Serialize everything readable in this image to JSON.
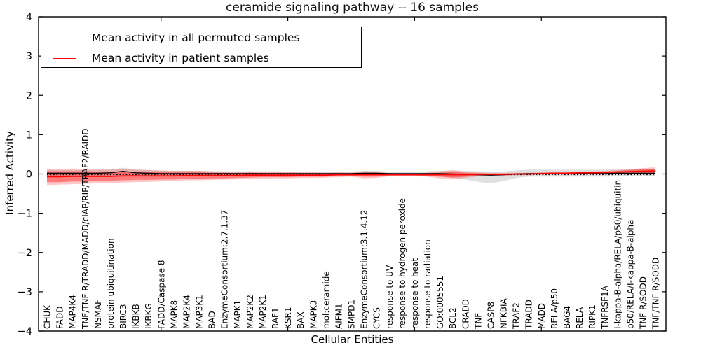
{
  "title": "ceramide signaling pathway -- 16 samples",
  "axes": {
    "ylabel": "Inferred Activity",
    "xlabel": "Cellular Entities",
    "ytick_labels": [
      "4",
      "3",
      "2",
      "1",
      "0",
      "−1",
      "−2",
      "−3",
      "−4"
    ],
    "ytick_values": [
      4,
      3,
      2,
      1,
      0,
      -1,
      -2,
      -3,
      -4
    ],
    "x_major_tick_indices": [
      9,
      19,
      29,
      39
    ]
  },
  "legend": {
    "items": [
      {
        "label": "Mean activity in all permuted samples",
        "color": "#000000"
      },
      {
        "label": "Mean activity in patient samples",
        "color": "#ff0000"
      }
    ]
  },
  "chart_data": {
    "type": "line",
    "title": "ceramide signaling pathway -- 16 samples",
    "xlabel": "Cellular Entities",
    "ylabel": "Inferred Activity",
    "ylim": [
      -4,
      4
    ],
    "legend_position": "upper left",
    "grid": false,
    "categories": [
      "CHUK",
      "FADD",
      "MAP4K4",
      "TNF/TNF R/TRADD/MADD/cIAP/RIP/TRAF2/RAIDD",
      "NSMAF",
      "protein ubiquitination",
      "BIRC3",
      "IKBKB",
      "IKBKG",
      "FADD/Caspase 8",
      "MAPK8",
      "MAP2K4",
      "MAP3K1",
      "BAD",
      "EnzymeConsortium:2.7.1.37",
      "MAPK1",
      "MAP2K2",
      "MAP2K1",
      "RAF1",
      "KSR1",
      "BAX",
      "MAPK3",
      "mol:ceramide",
      "AIFM1",
      "SMPD1",
      "EnzymeConsortium:3.1.4.12",
      "CYCS",
      "response to UV",
      "response to hydrogen peroxide",
      "response to heat",
      "response to radiation",
      "GO:0005551",
      "BCL2",
      "CRADD",
      "TNF",
      "CASP8",
      "NFKBIA",
      "TRAF2",
      "TRADD",
      "MADD",
      "RELA/p50",
      "BAG4",
      "RELA",
      "RIPK1",
      "TNFRSF1A",
      "I-kappa-B-alpha/RELA/p50/ubiquitin",
      "p50/RELA/I-kappa-B-alpha",
      "TNF R/SODD",
      "TNF/TNF R/SODD"
    ],
    "series": [
      {
        "name": "Mean activity in all permuted samples",
        "color": "#000000",
        "width": 1.3,
        "values": [
          0.02,
          0.02,
          0.02,
          0.02,
          0.02,
          0.03,
          0.07,
          0.03,
          0.02,
          0.01,
          0.01,
          0.01,
          0.01,
          0.01,
          0.01,
          0.01,
          0.01,
          0.01,
          0.01,
          0.01,
          0.01,
          0.01,
          0.01,
          0.01,
          0.01,
          0.02,
          0.02,
          0.01,
          0.01,
          0.01,
          0.01,
          0.01,
          0.0,
          -0.01,
          -0.02,
          -0.03,
          -0.02,
          0.0,
          0.01,
          0.01,
          0.01,
          0.01,
          0.01,
          0.01,
          0.01,
          0.02,
          0.02,
          0.02,
          0.02
        ]
      },
      {
        "name": "Mean activity in patient samples",
        "color": "#ff0000",
        "width": 1.6,
        "values": [
          -0.07,
          -0.07,
          -0.06,
          -0.06,
          -0.06,
          -0.06,
          -0.05,
          -0.05,
          -0.05,
          -0.05,
          -0.05,
          -0.04,
          -0.04,
          -0.04,
          -0.04,
          -0.04,
          -0.03,
          -0.03,
          -0.03,
          -0.03,
          -0.03,
          -0.03,
          -0.03,
          -0.02,
          -0.02,
          -0.02,
          -0.02,
          -0.02,
          -0.02,
          -0.02,
          -0.02,
          -0.02,
          -0.02,
          -0.02,
          -0.01,
          -0.01,
          -0.01,
          0.0,
          0.0,
          0.01,
          0.02,
          0.02,
          0.03,
          0.03,
          0.04,
          0.05,
          0.06,
          0.07,
          0.08
        ]
      }
    ],
    "bands": [
      {
        "name": "permuted-std-band",
        "series": 0,
        "color": "#999999",
        "opacity": 0.3,
        "upper": [
          0.08,
          0.08,
          0.08,
          0.08,
          0.08,
          0.08,
          0.09,
          0.08,
          0.08,
          0.07,
          0.07,
          0.07,
          0.07,
          0.06,
          0.06,
          0.06,
          0.06,
          0.06,
          0.06,
          0.05,
          0.05,
          0.05,
          0.05,
          0.05,
          0.05,
          0.06,
          0.06,
          0.05,
          0.05,
          0.05,
          0.06,
          0.07,
          0.08,
          0.09,
          0.09,
          0.09,
          0.08,
          0.09,
          0.1,
          0.1,
          0.1,
          0.1,
          0.1,
          0.1,
          0.1,
          0.1,
          0.1,
          0.11,
          0.11
        ],
        "lower": [
          0.08,
          0.08,
          0.08,
          0.08,
          0.08,
          0.08,
          0.09,
          0.08,
          0.08,
          0.07,
          0.07,
          0.07,
          0.07,
          0.06,
          0.06,
          0.06,
          0.06,
          0.06,
          0.06,
          0.05,
          0.05,
          0.05,
          0.05,
          0.05,
          0.05,
          0.06,
          0.06,
          0.05,
          0.05,
          0.05,
          0.06,
          0.07,
          0.09,
          0.13,
          0.18,
          0.21,
          0.16,
          0.1,
          0.08,
          0.08,
          0.08,
          0.08,
          0.08,
          0.08,
          0.08,
          0.08,
          0.08,
          0.08,
          0.08
        ]
      },
      {
        "name": "patient-outer-band",
        "series": 1,
        "color": "#ff0000",
        "opacity": 0.22,
        "upper": [
          0.21,
          0.2,
          0.2,
          0.19,
          0.18,
          0.17,
          0.17,
          0.16,
          0.15,
          0.14,
          0.13,
          0.12,
          0.12,
          0.11,
          0.1,
          0.1,
          0.09,
          0.09,
          0.08,
          0.08,
          0.07,
          0.07,
          0.06,
          0.06,
          0.05,
          0.09,
          0.08,
          0.04,
          0.03,
          0.03,
          0.05,
          0.09,
          0.12,
          0.08,
          0.05,
          0.04,
          0.04,
          0.03,
          0.03,
          0.03,
          0.03,
          0.03,
          0.03,
          0.04,
          0.04,
          0.05,
          0.06,
          0.08,
          0.09
        ],
        "lower": [
          0.21,
          0.2,
          0.2,
          0.19,
          0.18,
          0.17,
          0.17,
          0.16,
          0.15,
          0.14,
          0.13,
          0.12,
          0.12,
          0.11,
          0.1,
          0.1,
          0.09,
          0.09,
          0.08,
          0.08,
          0.07,
          0.07,
          0.06,
          0.06,
          0.05,
          0.09,
          0.08,
          0.04,
          0.03,
          0.03,
          0.05,
          0.09,
          0.12,
          0.08,
          0.05,
          0.04,
          0.04,
          0.03,
          0.03,
          0.03,
          0.03,
          0.03,
          0.03,
          0.04,
          0.04,
          0.05,
          0.06,
          0.08,
          0.09
        ]
      },
      {
        "name": "patient-inner-band",
        "series": 1,
        "color": "#ff0000",
        "opacity": 0.38,
        "upper": [
          0.14,
          0.14,
          0.13,
          0.13,
          0.12,
          0.11,
          0.11,
          0.1,
          0.1,
          0.09,
          0.09,
          0.08,
          0.08,
          0.07,
          0.07,
          0.06,
          0.06,
          0.05,
          0.05,
          0.05,
          0.04,
          0.04,
          0.04,
          0.03,
          0.03,
          0.05,
          0.05,
          0.02,
          0.02,
          0.02,
          0.03,
          0.05,
          0.07,
          0.05,
          0.03,
          0.02,
          0.02,
          0.02,
          0.02,
          0.02,
          0.02,
          0.02,
          0.02,
          0.02,
          0.02,
          0.03,
          0.04,
          0.05,
          0.05
        ],
        "lower": [
          0.14,
          0.14,
          0.13,
          0.13,
          0.12,
          0.11,
          0.11,
          0.1,
          0.1,
          0.09,
          0.09,
          0.08,
          0.08,
          0.07,
          0.07,
          0.06,
          0.06,
          0.05,
          0.05,
          0.05,
          0.04,
          0.04,
          0.04,
          0.03,
          0.03,
          0.05,
          0.05,
          0.02,
          0.02,
          0.02,
          0.03,
          0.05,
          0.07,
          0.05,
          0.03,
          0.02,
          0.02,
          0.02,
          0.02,
          0.02,
          0.02,
          0.02,
          0.02,
          0.02,
          0.02,
          0.03,
          0.04,
          0.05,
          0.05
        ]
      }
    ],
    "zero_line": 0
  }
}
